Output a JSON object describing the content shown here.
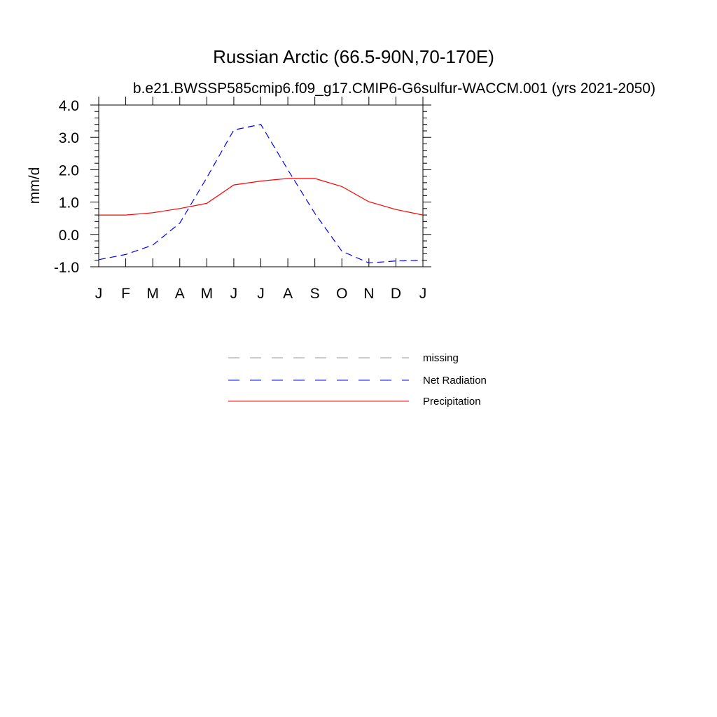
{
  "chart_data": {
    "type": "line",
    "title": "Russian Arctic (66.5-90N,70-170E)",
    "subtitle": "b.e21.BWSSP585cmip6.f09_g17.CMIP6-G6sulfur-WACCM.001 (yrs 2021-2050)",
    "ylabel": "mm/d",
    "xlabel": "",
    "ylim": [
      -1.0,
      4.0
    ],
    "yticks": [
      -1.0,
      0.0,
      1.0,
      2.0,
      3.0,
      4.0
    ],
    "ytick_labels": [
      "-1.0",
      "0.0",
      "1.0",
      "2.0",
      "3.0",
      "4.0"
    ],
    "categories": [
      "J",
      "F",
      "M",
      "A",
      "M",
      "J",
      "J",
      "A",
      "S",
      "O",
      "N",
      "D",
      "J"
    ],
    "series": [
      {
        "name": "Net Radiation",
        "color": "#0000ff",
        "dash": "dashed",
        "values": [
          -0.78,
          -0.62,
          -0.33,
          0.35,
          1.75,
          3.23,
          3.4,
          2.0,
          0.65,
          -0.52,
          -0.88,
          -0.82,
          -0.8
        ]
      },
      {
        "name": "Precipitation",
        "color": "#ff0000",
        "dash": "solid",
        "values": [
          0.6,
          0.6,
          0.67,
          0.8,
          0.96,
          1.53,
          1.65,
          1.73,
          1.73,
          1.48,
          1.01,
          0.77,
          0.6
        ]
      }
    ],
    "legend": {
      "placement": "below",
      "entries": [
        {
          "label": "missing",
          "color": "#999999",
          "dash": "dashed"
        },
        {
          "label": "Net Radiation",
          "color": "#0000ff",
          "dash": "dashed"
        },
        {
          "label": "Precipitation",
          "color": "#ff0000",
          "dash": "solid"
        }
      ]
    },
    "grid": false
  }
}
